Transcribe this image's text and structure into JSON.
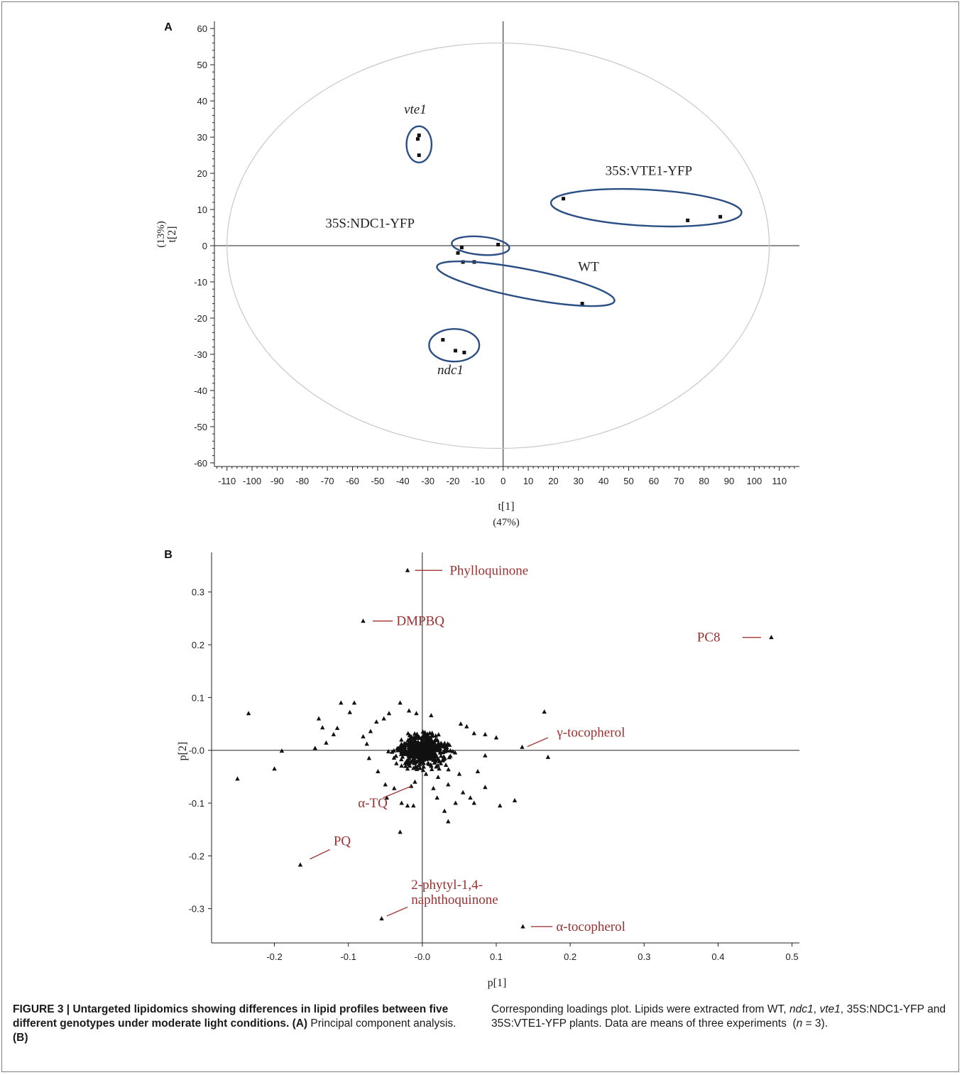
{
  "caption": {
    "figure_label": "FIGURE 3 |",
    "title": "Untargeted lipidomics showing differences in lipid profiles between five different genotypes under moderate light conditions.",
    "panel_a_tag": "(A)",
    "panel_a_text": "Principal component analysis.",
    "panel_b_tag": "(B)",
    "panel_b_text_1": "Corresponding loadings plot. Lipids were extracted from WT,",
    "g_ndc1": "ndc1",
    "comma_1": ",",
    "g_vte1": "vte1",
    "comma_2": ",",
    "panel_b_text_2": "35S:NDC1-YFP and 35S:VTE1-YFP plants. Data are means of three experiments",
    "n_open": "(",
    "n_var": "n",
    "n_rest": "= 3).",
    "n_close": ""
  },
  "chart_data": [
    {
      "type": "scatter",
      "panel_label": "A",
      "xlabel": "t[1]",
      "xlabel_sub": "(47%)",
      "ylabel": "t[2]",
      "ylabel_sub": "(13%)",
      "xlim": [
        -115,
        118
      ],
      "ylim": [
        -61,
        62
      ],
      "xticks": [
        -110,
        -100,
        -90,
        -80,
        -70,
        -60,
        -50,
        -40,
        -30,
        -20,
        -10,
        0,
        10,
        20,
        30,
        40,
        50,
        60,
        70,
        80,
        90,
        100,
        110
      ],
      "yticks": [
        60,
        50,
        40,
        30,
        20,
        10,
        0,
        -10,
        -20,
        -30,
        -40,
        -50,
        -60
      ],
      "hotelling_ellipse": {
        "cx": -2,
        "cy": 0,
        "rx": 108,
        "ry": 56
      },
      "points": [
        {
          "x": -33.5,
          "y": 30.5
        },
        {
          "x": -34,
          "y": 29.5
        },
        {
          "x": -33.5,
          "y": 25
        },
        {
          "x": 24,
          "y": 13
        },
        {
          "x": 73.5,
          "y": 7
        },
        {
          "x": 86.5,
          "y": 8
        },
        {
          "x": -18,
          "y": -2
        },
        {
          "x": -16.5,
          "y": -0.5
        },
        {
          "x": -2,
          "y": 0.3
        },
        {
          "x": -16,
          "y": -4.5
        },
        {
          "x": -11.5,
          "y": -4.5
        },
        {
          "x": 31.5,
          "y": -16
        },
        {
          "x": -24,
          "y": -26
        },
        {
          "x": -19,
          "y": -29
        },
        {
          "x": -15.5,
          "y": -29.5
        }
      ],
      "groups": [
        {
          "name": "vte1",
          "italic": true,
          "cx": -33.5,
          "cy": 28,
          "rx": 5,
          "ry": 5,
          "angle": 0,
          "label_x": -35,
          "label_y": 36.5
        },
        {
          "name": "35S:VTE1-YFP",
          "italic": false,
          "cx": 57,
          "cy": 10.5,
          "rx": 38,
          "ry": 5,
          "angle": -3,
          "label_x": 58,
          "label_y": 19.5
        },
        {
          "name": "35S:NDC1-YFP",
          "italic": false,
          "cx": -9,
          "cy": 0,
          "rx": 11.5,
          "ry": 2.5,
          "angle": -5,
          "label_x": -53,
          "label_y": 5
        },
        {
          "name": "WT",
          "italic": false,
          "cx": 9,
          "cy": -10.5,
          "rx": 36,
          "ry": 4,
          "angle": -11,
          "label_x": 34,
          "label_y": -7
        },
        {
          "name": "ndc1",
          "italic": true,
          "cx": -19.5,
          "cy": -27.5,
          "rx": 10,
          "ry": 4.5,
          "angle": 0,
          "label_x": -21,
          "label_y": -35.5
        }
      ]
    },
    {
      "type": "scatter",
      "panel_label": "B",
      "xlabel": "p[1]",
      "ylabel": "p[2]",
      "xlim": [
        -0.285,
        0.51
      ],
      "ylim": [
        -0.365,
        0.375
      ],
      "xticks": [
        -0.2,
        -0.1,
        0.0,
        0.1,
        0.2,
        0.3,
        0.4,
        0.5
      ],
      "xtick_labels": [
        "-0.2",
        "-0.1",
        "-0.0",
        "0.1",
        "0.2",
        "0.3",
        "0.4",
        "0.5"
      ],
      "yticks": [
        0.3,
        0.2,
        0.1,
        0.0,
        -0.1,
        -0.2,
        -0.3
      ],
      "ytick_labels": [
        "0.3",
        "0.2",
        "0.1",
        "-0.0",
        "-0.1",
        "-0.2",
        "-0.3"
      ],
      "labeled_points": [
        {
          "name": "Phylloquinone",
          "x": -0.02,
          "y": 0.341,
          "lx1": -0.01,
          "ly1": 0.341,
          "lx2": 0.027,
          "ly2": 0.341,
          "tx": 0.037,
          "ty": 0.341,
          "anchor": "start"
        },
        {
          "name": "DMPBQ",
          "x": -0.08,
          "y": 0.245,
          "lx1": -0.067,
          "ly1": 0.245,
          "lx2": -0.04,
          "ly2": 0.245,
          "tx": -0.035,
          "ty": 0.245,
          "anchor": "start"
        },
        {
          "name": "PC8",
          "x": 0.472,
          "y": 0.214,
          "lx1": 0.433,
          "ly1": 0.214,
          "lx2": 0.458,
          "ly2": 0.214,
          "tx": 0.403,
          "ty": 0.214,
          "anchor": "end"
        },
        {
          "name": "γ-tocopherol",
          "x": 0.135,
          "y": 0.006,
          "lx1": 0.142,
          "ly1": 0.007,
          "lx2": 0.17,
          "ly2": 0.024,
          "tx": 0.182,
          "ty": 0.034,
          "anchor": "start"
        },
        {
          "name": "α-TQ",
          "x": -0.015,
          "y": -0.068,
          "lx1": -0.053,
          "ly1": -0.09,
          "lx2": -0.015,
          "ly2": -0.068,
          "tx": -0.047,
          "ty": -0.1,
          "anchor": "end"
        },
        {
          "name": "PQ",
          "x": -0.165,
          "y": -0.217,
          "lx1": -0.152,
          "ly1": -0.206,
          "lx2": -0.125,
          "ly2": -0.188,
          "tx": -0.12,
          "ty": -0.172,
          "anchor": "start"
        },
        {
          "name": "2-phytyl-1,4-",
          "x": -0.055,
          "y": -0.319,
          "lx1": -0.048,
          "ly1": -0.314,
          "lx2": -0.02,
          "ly2": -0.297,
          "tx": -0.015,
          "ty": -0.255,
          "anchor": "start",
          "name2": "naphthoquinone",
          "ty2": -0.283
        },
        {
          "name": "α-tocopherol",
          "x": 0.136,
          "y": -0.334,
          "lx1": 0.147,
          "ly1": -0.334,
          "lx2": 0.176,
          "ly2": -0.334,
          "tx": 0.181,
          "ty": -0.334,
          "anchor": "start"
        }
      ],
      "points": [
        [
          -0.25,
          -0.054
        ],
        [
          -0.235,
          0.07
        ],
        [
          -0.19,
          -0.001
        ],
        [
          -0.2,
          -0.035
        ],
        [
          -0.14,
          0.06
        ],
        [
          -0.135,
          0.043
        ],
        [
          -0.115,
          0.042
        ],
        [
          -0.11,
          0.09
        ],
        [
          -0.092,
          0.09
        ],
        [
          -0.098,
          0.072
        ],
        [
          -0.145,
          0.004
        ],
        [
          -0.13,
          0.014
        ],
        [
          -0.12,
          0.03
        ],
        [
          -0.08,
          0.026
        ],
        [
          -0.075,
          0.012
        ],
        [
          -0.07,
          0.036
        ],
        [
          -0.062,
          0.054
        ],
        [
          -0.052,
          0.06
        ],
        [
          -0.045,
          0.07
        ],
        [
          -0.03,
          0.09
        ],
        [
          -0.018,
          0.075
        ],
        [
          -0.008,
          0.07
        ],
        [
          0.012,
          0.066
        ],
        [
          0.052,
          0.05
        ],
        [
          0.06,
          0.045
        ],
        [
          0.07,
          0.032
        ],
        [
          0.085,
          0.03
        ],
        [
          0.1,
          0.024
        ],
        [
          0.165,
          0.073
        ],
        [
          0.17,
          -0.013
        ],
        [
          -0.072,
          -0.015
        ],
        [
          -0.06,
          -0.04
        ],
        [
          -0.05,
          -0.065
        ],
        [
          -0.048,
          -0.09
        ],
        [
          -0.038,
          -0.072
        ],
        [
          -0.028,
          -0.1
        ],
        [
          -0.02,
          -0.105
        ],
        [
          -0.012,
          -0.105
        ],
        [
          -0.03,
          -0.155
        ],
        [
          0.015,
          -0.072
        ],
        [
          0.02,
          -0.09
        ],
        [
          0.03,
          -0.115
        ],
        [
          0.035,
          -0.135
        ],
        [
          0.045,
          -0.1
        ],
        [
          0.055,
          -0.08
        ],
        [
          0.065,
          -0.09
        ],
        [
          0.07,
          -0.1
        ],
        [
          0.085,
          -0.07
        ],
        [
          0.105,
          -0.105
        ],
        [
          0.125,
          -0.095
        ],
        [
          0.035,
          -0.065
        ],
        [
          0.05,
          -0.045
        ],
        [
          0.075,
          -0.04
        ],
        [
          0.085,
          -0.01
        ],
        [
          -0.02,
          -0.035
        ],
        [
          -0.01,
          -0.06
        ],
        [
          0.005,
          -0.045
        ],
        [
          0.012,
          -0.03
        ],
        [
          0.025,
          -0.025
        ],
        [
          -0.035,
          -0.025
        ]
      ],
      "cluster": {
        "cx": 0.0,
        "cy": 0.0,
        "sx": 0.022,
        "sy": 0.02,
        "count": 520,
        "seed": 7
      }
    }
  ]
}
